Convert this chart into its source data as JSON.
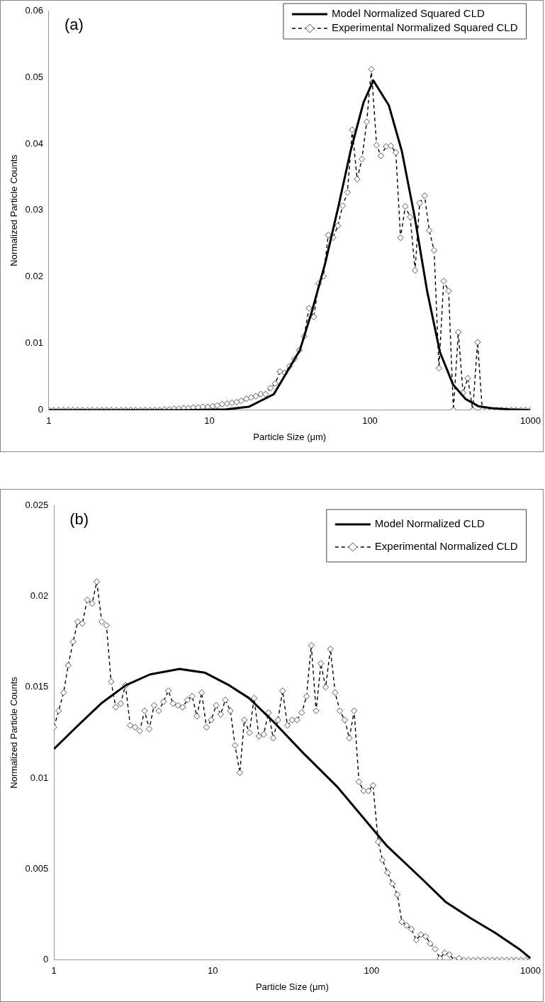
{
  "chart_data": [
    {
      "type": "line",
      "xlabel": "Particle Size (μm)",
      "ylabel": "Normalized Particle Counts",
      "log": "x",
      "xlim": [
        1,
        1000
      ],
      "xticks": [
        1,
        10,
        100,
        1000
      ],
      "ylim": [
        0,
        0.06
      ],
      "yticks": [
        0,
        0.01,
        0.02,
        0.03,
        0.04,
        0.05,
        0.06
      ],
      "grid": false,
      "legend": "top right",
      "annotations": [
        "(a)"
      ],
      "series": [
        {
          "name": "Model Normalized Squared CLD",
          "color": "#000000",
          "marker": "none",
          "line_style": "solid",
          "x": [
            1,
            7.3,
            12.6,
            17.6,
            25.2,
            36.6,
            43.7,
            52.7,
            63.5,
            75.7,
            91.2,
            105,
            131,
            158,
            190,
            227,
            273,
            330,
            393,
            473,
            571,
            734,
            1000
          ],
          "values": [
            0,
            0,
            0.0001,
            0.0005,
            0.0024,
            0.009,
            0.015,
            0.0221,
            0.0305,
            0.0389,
            0.0462,
            0.0495,
            0.0458,
            0.0389,
            0.029,
            0.0179,
            0.0087,
            0.0038,
            0.0017,
            0.0006,
            0.0003,
            0.0001,
            0
          ]
        },
        {
          "name": "Experimental Normalized Squared CLD",
          "color": "#000000",
          "marker": "diamond",
          "line_style": "dashed",
          "x": [
            1,
            1.07,
            1.15,
            1.23,
            1.32,
            1.41,
            1.51,
            1.62,
            1.74,
            1.86,
            2.0,
            2.14,
            2.29,
            2.45,
            2.63,
            2.82,
            3.02,
            3.24,
            3.47,
            3.72,
            3.98,
            4.27,
            4.57,
            4.9,
            5.25,
            5.62,
            6.03,
            6.46,
            6.92,
            7.41,
            7.94,
            8.51,
            9.12,
            9.77,
            10.5,
            11.2,
            12.0,
            12.9,
            13.8,
            14.8,
            15.8,
            17.0,
            18.2,
            19.5,
            20.9,
            22.4,
            24.0,
            25.7,
            27.5,
            29.5,
            31.6,
            33.9,
            36.3,
            38.9,
            41.7,
            44.7,
            47.9,
            51.3,
            55.0,
            58.9,
            63.1,
            67.6,
            72.4,
            77.6,
            83.2,
            89.1,
            95.5,
            102,
            110,
            117,
            126,
            135,
            145,
            155,
            166,
            178,
            191,
            204,
            219,
            234,
            251,
            269,
            288,
            309,
            331,
            355,
            380,
            407,
            437,
            468,
            501,
            537,
            575,
            617,
            661,
            708,
            759,
            813,
            871,
            933,
            1000
          ],
          "values": [
            0,
            0,
            0,
            0,
            0,
            0,
            0,
            0,
            0,
            0,
            0,
            0,
            0,
            0,
            0,
            0,
            0,
            0,
            0,
            0,
            0,
            0,
            0,
            0,
            0.0001,
            0.0001,
            0.0002,
            0.0002,
            0.0003,
            0.0003,
            0.0004,
            0.0004,
            0.0005,
            0.0005,
            0.0006,
            0.0007,
            0.0009,
            0.001,
            0.0011,
            0.0012,
            0.0014,
            0.0017,
            0.0019,
            0.0021,
            0.0024,
            0.0024,
            0.0033,
            0.004,
            0.0058,
            0.0056,
            0.0066,
            0.0077,
            0.009,
            0.0111,
            0.0153,
            0.014,
            0.019,
            0.0201,
            0.0263,
            0.0259,
            0.0277,
            0.0307,
            0.0327,
            0.0421,
            0.0347,
            0.0377,
            0.0433,
            0.0512,
            0.0398,
            0.0382,
            0.0396,
            0.0397,
            0.0387,
            0.0259,
            0.0306,
            0.029,
            0.021,
            0.0311,
            0.0322,
            0.027,
            0.024,
            0.0063,
            0.0194,
            0.0179,
            0,
            0.0117,
            0.0026,
            0.0048,
            0,
            0.0102,
            0,
            0,
            0,
            0,
            0,
            0,
            0,
            0,
            0,
            0,
            0
          ]
        }
      ]
    },
    {
      "type": "line",
      "xlabel": "Particle Size (μm)",
      "ylabel": "Normalized Particle Counts",
      "log": "x",
      "xlim": [
        1,
        1000
      ],
      "xticks": [
        1,
        10,
        100,
        1000
      ],
      "ylim": [
        0,
        0.025
      ],
      "yticks": [
        0,
        0.005,
        0.01,
        0.015,
        0.02,
        0.025
      ],
      "grid": false,
      "legend": "top right",
      "annotations": [
        "(b)"
      ],
      "series": [
        {
          "name": "Model Normalized CLD",
          "color": "#000000",
          "marker": "none",
          "line_style": "solid",
          "x": [
            1,
            1.38,
            1.98,
            2.83,
            4.02,
            6.18,
            8.89,
            12.7,
            16.9,
            24.1,
            36.9,
            61.1,
            87.1,
            124,
            205,
            292,
            420,
            598,
            851,
            1000
          ],
          "values": [
            0.0116,
            0.0128,
            0.0141,
            0.0151,
            0.0157,
            0.016,
            0.0158,
            0.0151,
            0.0144,
            0.0131,
            0.0114,
            0.0095,
            0.0079,
            0.0063,
            0.0045,
            0.0032,
            0.0023,
            0.0015,
            0.0006,
            0.0001
          ]
        },
        {
          "name": "Experimental Normalized CLD",
          "color": "#000000",
          "marker": "diamond",
          "line_style": "dashed",
          "x": [
            1,
            1.07,
            1.15,
            1.23,
            1.32,
            1.41,
            1.51,
            1.62,
            1.74,
            1.86,
            2.0,
            2.14,
            2.29,
            2.45,
            2.63,
            2.82,
            3.02,
            3.24,
            3.47,
            3.72,
            3.98,
            4.27,
            4.57,
            4.9,
            5.25,
            5.62,
            6.03,
            6.46,
            6.92,
            7.41,
            7.94,
            8.51,
            9.12,
            9.77,
            10.5,
            11.2,
            12.0,
            12.9,
            13.8,
            14.8,
            15.8,
            17.0,
            18.2,
            19.5,
            20.9,
            22.4,
            24.0,
            25.7,
            27.5,
            29.5,
            31.6,
            33.9,
            36.3,
            38.9,
            41.7,
            44.7,
            47.9,
            51.3,
            55.0,
            58.9,
            63.1,
            67.6,
            72.4,
            77.6,
            83.2,
            89.1,
            95.5,
            102,
            110,
            117,
            126,
            135,
            145,
            155,
            166,
            178,
            191,
            204,
            219,
            234,
            251,
            269,
            288,
            309,
            331,
            355,
            380,
            407,
            437,
            468,
            501,
            537,
            575,
            617,
            661,
            708,
            759,
            813,
            871,
            933,
            1000
          ],
          "values": [
            0.0128,
            0.0137,
            0.0147,
            0.0162,
            0.0175,
            0.0186,
            0.0185,
            0.0198,
            0.0196,
            0.0208,
            0.0186,
            0.0184,
            0.0153,
            0.0139,
            0.0141,
            0.0151,
            0.0129,
            0.0128,
            0.0126,
            0.0137,
            0.0127,
            0.014,
            0.0137,
            0.0142,
            0.0148,
            0.0141,
            0.014,
            0.0139,
            0.0143,
            0.0145,
            0.0134,
            0.0147,
            0.0128,
            0.0132,
            0.014,
            0.0135,
            0.0143,
            0.0137,
            0.0118,
            0.0103,
            0.0132,
            0.0125,
            0.0144,
            0.0123,
            0.0124,
            0.0136,
            0.0122,
            0.0132,
            0.0148,
            0.0129,
            0.0132,
            0.0132,
            0.0136,
            0.0145,
            0.0173,
            0.0137,
            0.0163,
            0.015,
            0.0171,
            0.0147,
            0.0137,
            0.0132,
            0.0122,
            0.0137,
            0.0098,
            0.0093,
            0.0093,
            0.0096,
            0.0065,
            0.0055,
            0.0048,
            0.0042,
            0.0036,
            0.0021,
            0.0019,
            0.0017,
            0.0011,
            0.0014,
            0.0013,
            0.0009,
            0.0006,
            0.0001,
            0.0004,
            0.0003,
            0,
            0.0001,
            0,
            0,
            0,
            0,
            0,
            0,
            0,
            0,
            0,
            0,
            0,
            0,
            0,
            0,
            0
          ]
        }
      ]
    }
  ]
}
